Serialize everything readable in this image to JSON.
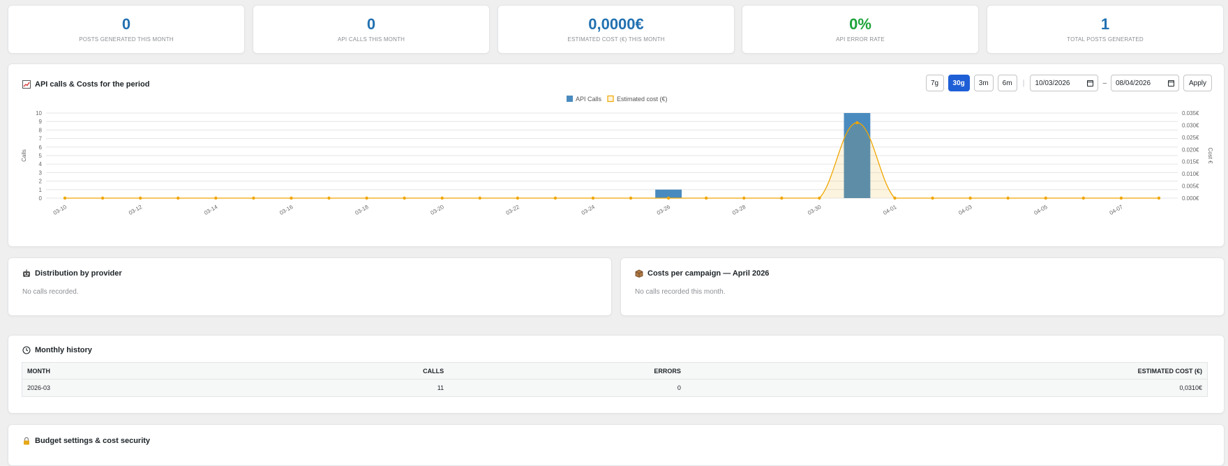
{
  "stats": [
    {
      "value": "0",
      "label": "Posts generated this month",
      "color": "#2271b1"
    },
    {
      "value": "0",
      "label": "API calls this month",
      "color": "#2271b1"
    },
    {
      "value": "0,0000€",
      "label": "Estimated cost (€) this month",
      "color": "#2271b1"
    },
    {
      "value": "0%",
      "label": "API error rate",
      "color": "#1ea33a"
    },
    {
      "value": "1",
      "label": "Total posts generated",
      "color": "#2271b1"
    }
  ],
  "chart_section": {
    "icon": "chart-trend-icon",
    "title": "API calls & Costs for the period",
    "periods": [
      "7g",
      "30g",
      "3m",
      "6m"
    ],
    "active_period": "30g",
    "date_from": "10/03/2026",
    "date_to": "08/04/2026",
    "date_separator": "–",
    "apply_label": "Apply"
  },
  "chart_data": {
    "type": "bar",
    "categories": [
      "03-10",
      "03-11",
      "03-12",
      "03-13",
      "03-14",
      "03-15",
      "03-16",
      "03-17",
      "03-18",
      "03-19",
      "03-20",
      "03-21",
      "03-22",
      "03-23",
      "03-24",
      "03-25",
      "03-26",
      "03-27",
      "03-28",
      "03-29",
      "03-30",
      "03-31",
      "04-01",
      "04-02",
      "04-03",
      "04-04",
      "04-05",
      "04-06",
      "04-07",
      "04-08"
    ],
    "x_tick_labels": [
      "03-10",
      "03-12",
      "03-14",
      "03-16",
      "03-18",
      "03-20",
      "03-22",
      "03-24",
      "03-26",
      "03-28",
      "03-30",
      "04-01",
      "04-03",
      "04-05",
      "04-07"
    ],
    "series": [
      {
        "name": "API Calls",
        "type": "bar",
        "axis": "left",
        "color": "#4a8bbf",
        "values": [
          0,
          0,
          0,
          0,
          0,
          0,
          0,
          0,
          0,
          0,
          0,
          0,
          0,
          0,
          0,
          0,
          1,
          0,
          0,
          0,
          0,
          10,
          0,
          0,
          0,
          0,
          0,
          0,
          0,
          0
        ]
      },
      {
        "name": "Estimated cost (€)",
        "type": "area-line",
        "axis": "right",
        "color": "#f0a500",
        "values": [
          0,
          0,
          0,
          0,
          0,
          0,
          0,
          0,
          0,
          0,
          0,
          0,
          0,
          0,
          0,
          0,
          0,
          0,
          0,
          0,
          0,
          0.031,
          0,
          0,
          0,
          0,
          0,
          0,
          0,
          0
        ]
      }
    ],
    "ylabel_left": "Calls",
    "ylabel_right": "Cost €",
    "ylim_left": [
      0,
      10
    ],
    "ylim_right": [
      0,
      0.035
    ],
    "yticks_left": [
      "0",
      "1",
      "2",
      "3",
      "4",
      "5",
      "6",
      "7",
      "8",
      "9",
      "10"
    ],
    "yticks_right": [
      "0.000€",
      "0.005€",
      "0.010€",
      "0.015€",
      "0.020€",
      "0.025€",
      "0.030€",
      "0.035€"
    ],
    "legend_position": "top-center",
    "grid": true
  },
  "provider": {
    "title": "Distribution by provider",
    "icon": "robot-icon",
    "empty": "No calls recorded."
  },
  "campaign": {
    "title": "Costs per campaign — April 2026",
    "icon": "box-icon",
    "empty": "No calls recorded this month."
  },
  "history": {
    "title": "Monthly history",
    "icon": "clock-icon",
    "columns": [
      "MONTH",
      "CALLS",
      "ERRORS",
      "ESTIMATED COST (€)"
    ],
    "rows": [
      [
        "2026-03",
        "11",
        "0",
        "0,0310€"
      ]
    ]
  },
  "budget": {
    "title": "Budget settings & cost security",
    "icon": "lock-icon"
  }
}
